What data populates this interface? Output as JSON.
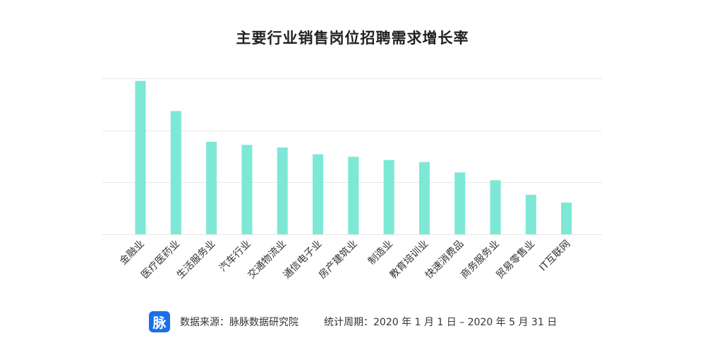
{
  "title": "主要行业销售岗位招聘需求增长率",
  "chart_data": {
    "type": "bar",
    "title": "主要行业销售岗位招聘需求增长率",
    "categories": [
      "金融业",
      "医疗医药业",
      "生活服务业",
      "汽车行业",
      "交通物流业",
      "通信电子业",
      "房产建筑业",
      "制造业",
      "教育培训业",
      "快速消费品",
      "商务服务业",
      "贸易零售业",
      "IT互联网"
    ],
    "values": [
      2.95,
      2.37,
      1.78,
      1.72,
      1.67,
      1.54,
      1.49,
      1.43,
      1.39,
      1.19,
      1.04,
      0.76,
      0.61
    ],
    "ylim": [
      0,
      3
    ],
    "ticks": [
      0,
      1,
      2,
      3
    ],
    "grid": true,
    "tick_labels_shown": false,
    "bar_color": "#7de8d6",
    "grid_color": "#e6e6e6"
  },
  "footer": {
    "logo_text": "脉",
    "logo_color": "#1a6fe8",
    "source": "数据来源：脉脉数据研究院",
    "period": "统计周期：2020 年 1 月 1 日 – 2020 年 5 月 31 日"
  }
}
